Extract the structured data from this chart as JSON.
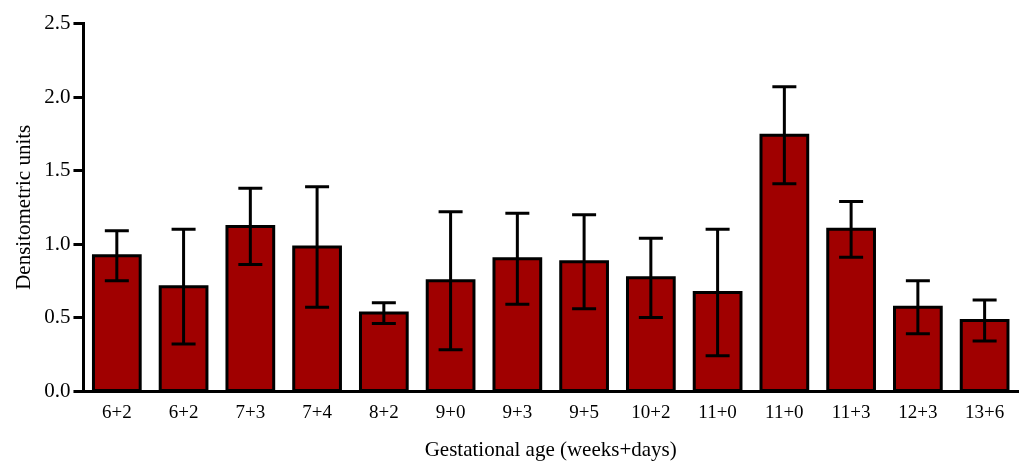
{
  "chart_data": {
    "type": "bar",
    "xlabel": "Gestational age (weeks+days)",
    "ylabel": "Densitometric units",
    "categories": [
      "6+2",
      "6+2",
      "7+3",
      "7+4",
      "8+2",
      "9+0",
      "9+3",
      "9+5",
      "10+2",
      "11+0",
      "11+0",
      "11+3",
      "12+3",
      "13+6"
    ],
    "values": [
      0.92,
      0.71,
      1.12,
      0.98,
      0.53,
      0.75,
      0.9,
      0.88,
      0.77,
      0.67,
      1.74,
      1.1,
      0.57,
      0.48
    ],
    "errors": [
      0.17,
      0.39,
      0.26,
      0.41,
      0.07,
      0.47,
      0.31,
      0.32,
      0.27,
      0.43,
      0.33,
      0.19,
      0.18,
      0.14
    ],
    "color": "#a00000",
    "ylim": [
      0,
      2.5
    ],
    "yticks": [
      {
        "value": 0,
        "label": "0.0"
      },
      {
        "value": 0.5,
        "label": "0.5"
      },
      {
        "value": 1,
        "label": "1.0"
      },
      {
        "value": 1.5,
        "label": "1.5"
      },
      {
        "value": 2,
        "label": "2.0"
      },
      {
        "value": 2.5,
        "label": "2.5"
      }
    ],
    "grid": false,
    "legend": false
  }
}
